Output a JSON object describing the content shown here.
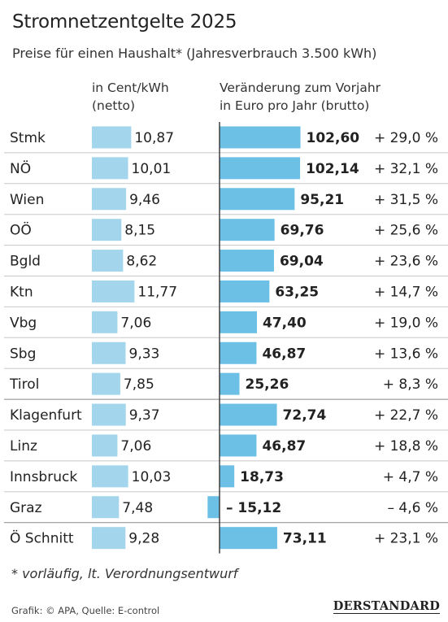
{
  "title": "Stromnetzentgelte 2025",
  "subtitle": "Preise für einen Haushalt* (Jahresverbrauch 3.500 kWh)",
  "columns": {
    "price": [
      "in Cent/kWh",
      "(netto)"
    ],
    "change": [
      "Veränderung zum Vorjahr",
      "in Euro pro Jahr (brutto)"
    ]
  },
  "footnote": "* vorläufig, lt. Verordnungsentwurf",
  "credit": "Grafik: © APA, Quelle: E-control",
  "logo": "DERSTANDARD",
  "colors": {
    "price_bar": "#a3d6ec",
    "change_bar": "#6cc0e5",
    "separator": "#c8c8c8",
    "axis": "#333333"
  },
  "chart_data": {
    "type": "bar",
    "categories": [
      "Stmk",
      "NÖ",
      "Wien",
      "OÖ",
      "Bgld",
      "Ktn",
      "Vbg",
      "Sbg",
      "Tirol",
      "Klagenfurt",
      "Linz",
      "Innsbruck",
      "Graz",
      "Ö Schnitt"
    ],
    "series": [
      {
        "name": "in Cent/kWh (netto)",
        "values": [
          10.87,
          10.01,
          9.46,
          8.15,
          8.62,
          11.77,
          7.06,
          9.33,
          7.85,
          9.37,
          7.06,
          10.03,
          7.48,
          9.28
        ],
        "labels": [
          "10,87",
          "10,01",
          "9,46",
          "8,15",
          "8,62",
          "11,77",
          "7,06",
          "9,33",
          "7,85",
          "9,37",
          "7,06",
          "10,03",
          "7,48",
          "9,28"
        ]
      },
      {
        "name": "Veränderung zum Vorjahr in Euro pro Jahr (brutto)",
        "values": [
          102.6,
          102.14,
          95.21,
          69.76,
          69.04,
          63.25,
          47.4,
          46.87,
          25.26,
          72.74,
          46.87,
          18.73,
          -15.12,
          73.11
        ],
        "labels": [
          "102,60",
          "102,14",
          "95,21",
          "69,76",
          "69,04",
          "63,25",
          "47,40",
          "46,87",
          "25,26",
          "72,74",
          "46,87",
          "18,73",
          "– 15,12",
          "73,11"
        ],
        "percent_labels": [
          "+ 29,0 %",
          "+ 32,1 %",
          "+ 31,5 %",
          "+ 25,6 %",
          "+ 23,6 %",
          "+ 14,7 %",
          "+ 19,0 %",
          "+ 13,6 %",
          "+ 8,3 %",
          "+ 22,7 %",
          "+ 18,8 %",
          "+ 4,7 %",
          "– 4,6 %",
          "+ 23,1 %"
        ]
      }
    ],
    "group_breaks_after": [
      "Tirol",
      "Graz"
    ]
  }
}
